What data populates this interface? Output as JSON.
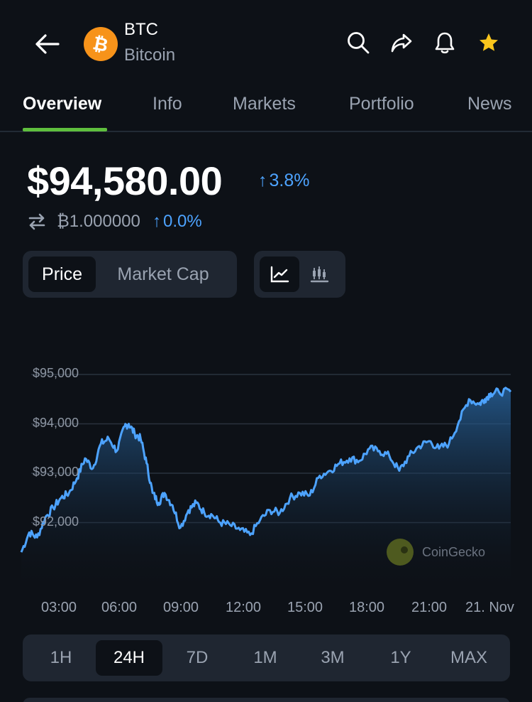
{
  "header": {
    "back_icon": "arrow-left-icon",
    "coin_logo_glyph": "₿",
    "coin_symbol": "BTC",
    "coin_name": "Bitcoin",
    "actions": [
      "search-icon",
      "share-icon",
      "bell-icon",
      "star-icon"
    ]
  },
  "tabs": [
    {
      "label": "Overview",
      "active": true
    },
    {
      "label": "Info"
    },
    {
      "label": "Markets"
    },
    {
      "label": "Portfolio"
    },
    {
      "label": "News"
    }
  ],
  "price": {
    "value": "$94,580.00",
    "change_arrow": "↑",
    "change": "3.8%",
    "btc_value": "₿1.000000",
    "btc_change_arrow": "↑",
    "btc_change": "0.0%"
  },
  "toggles": {
    "price": "Price",
    "market_cap": "Market Cap",
    "selected": "Price"
  },
  "chart_types": [
    "line-chart-icon",
    "candlestick-icon"
  ],
  "watermark": "CoinGecko",
  "ranges": [
    "1H",
    "24H",
    "7D",
    "1M",
    "3M",
    "1Y",
    "MAX"
  ],
  "selected_range": "24H",
  "colors": {
    "background": "#0d1117",
    "accent_blue": "#4da3ff",
    "tab_underline": "#5fbf3e",
    "bitcoin_orange": "#f7931a"
  },
  "chart_data": {
    "type": "area",
    "y_ticks": [
      "$95,000",
      "$94,000",
      "$93,000",
      "$92,000"
    ],
    "x_ticks": [
      "03:00",
      "06:00",
      "09:00",
      "12:00",
      "15:00",
      "18:00",
      "21:00",
      "21. Nov"
    ],
    "ylim": [
      91200,
      95000
    ],
    "grid": true,
    "series": [
      {
        "x": [
          0,
          0.4,
          0.8,
          1.2,
          1.6,
          2.0,
          2.4,
          2.8,
          3.2,
          3.6,
          4.0,
          4.4,
          4.8,
          5.2,
          5.4,
          5.7,
          6.0,
          6.3,
          6.6,
          6.9,
          7.2,
          7.6,
          8.0,
          8.4,
          8.8,
          9.2,
          9.6,
          10.0,
          10.5,
          11.0,
          11.5,
          12.0,
          12.5,
          13.0,
          13.5,
          14.0,
          14.5,
          15.0,
          15.5,
          16.0,
          16.5,
          17.0,
          17.5,
          18.0,
          18.5,
          19.0,
          19.5,
          20.0,
          20.5,
          21.0,
          21.5,
          22.0,
          22.5,
          23.0,
          23.3,
          23.6,
          24.0,
          24.6
        ],
        "y": [
          91400,
          91800,
          91700,
          92100,
          92300,
          92500,
          92600,
          92900,
          93300,
          93100,
          93600,
          93700,
          93450,
          93950,
          94000,
          93800,
          93700,
          93200,
          92600,
          92400,
          92600,
          92350,
          91900,
          92250,
          92400,
          92200,
          92150,
          92000,
          91950,
          91850,
          91750,
          92050,
          92250,
          92200,
          92500,
          92600,
          92550,
          92950,
          93050,
          93200,
          93300,
          93250,
          93500,
          93450,
          93350,
          93050,
          93350,
          93550,
          93650,
          93500,
          93600,
          94050,
          94500,
          94400,
          94500,
          94620,
          94650,
          94650
        ]
      }
    ]
  }
}
